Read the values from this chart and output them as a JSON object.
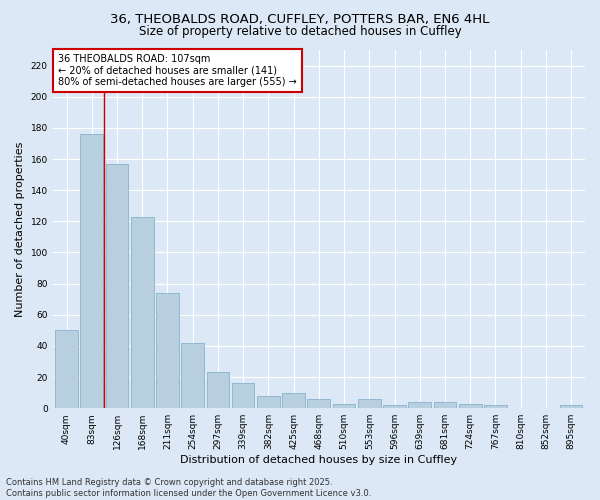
{
  "title_line1": "36, THEOBALDS ROAD, CUFFLEY, POTTERS BAR, EN6 4HL",
  "title_line2": "Size of property relative to detached houses in Cuffley",
  "xlabel": "Distribution of detached houses by size in Cuffley",
  "ylabel": "Number of detached properties",
  "categories": [
    "40sqm",
    "83sqm",
    "126sqm",
    "168sqm",
    "211sqm",
    "254sqm",
    "297sqm",
    "339sqm",
    "382sqm",
    "425sqm",
    "468sqm",
    "510sqm",
    "553sqm",
    "596sqm",
    "639sqm",
    "681sqm",
    "724sqm",
    "767sqm",
    "810sqm",
    "852sqm",
    "895sqm"
  ],
  "values": [
    50,
    176,
    157,
    123,
    74,
    42,
    23,
    16,
    8,
    10,
    6,
    3,
    6,
    2,
    4,
    4,
    3,
    2,
    0,
    0,
    2
  ],
  "bar_color": "#b8cfe0",
  "bar_edge_color": "#7aaac8",
  "vline_x": 1.5,
  "annotation_text": "36 THEOBALDS ROAD: 107sqm\n← 20% of detached houses are smaller (141)\n80% of semi-detached houses are larger (555) →",
  "annotation_box_color": "#ffffff",
  "annotation_box_edge_color": "#cc0000",
  "vline_color": "#cc0000",
  "ylim": [
    0,
    230
  ],
  "yticks": [
    0,
    20,
    40,
    60,
    80,
    100,
    120,
    140,
    160,
    180,
    200,
    220
  ],
  "footer_line1": "Contains HM Land Registry data © Crown copyright and database right 2025.",
  "footer_line2": "Contains public sector information licensed under the Open Government Licence v3.0.",
  "background_color": "#dce8f5",
  "plot_bg_color": "#dce8f5",
  "grid_color": "#ffffff",
  "title_fontsize": 9.5,
  "subtitle_fontsize": 8.5,
  "axis_label_fontsize": 8,
  "tick_fontsize": 6.5,
  "annotation_fontsize": 7,
  "footer_fontsize": 6
}
